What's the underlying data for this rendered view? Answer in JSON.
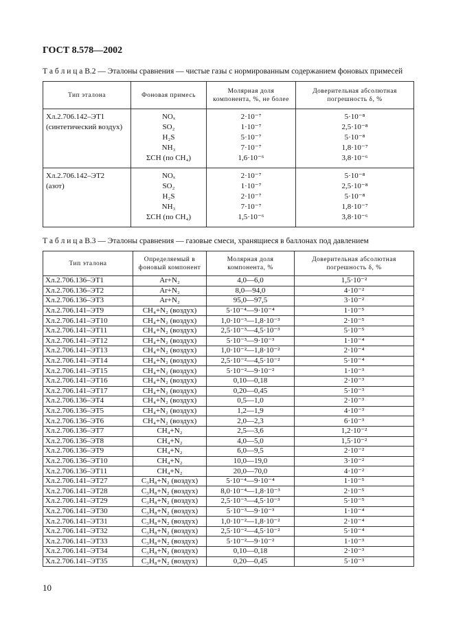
{
  "header": "ГОСТ 8.578—2002",
  "table_b2": {
    "caption": "Т а б л и ц а  В.2 — Эталоны сравнения — чистые газы с нормированным содержанием фоновых примесей",
    "columns": [
      "Тип эталона",
      "Фоновая примесь",
      "Молярная доля компонента, %, не более",
      "Доверительная абсолютная погрешность δ, %"
    ],
    "groups": [
      {
        "name": [
          "Хл.2.706.142–ЭТ1",
          "(синтетический воздух)"
        ],
        "impurities": [
          "NOₓ",
          "SO₂",
          "H₂S",
          "NH₃",
          "ΣCH (по CH₄)"
        ],
        "fractions": [
          "2·10⁻⁷",
          "1·10⁻⁷",
          "5·10⁻⁷",
          "7·10⁻⁷",
          "1,6·10⁻⁶"
        ],
        "errors": [
          "5·10⁻⁸",
          "2,5·10⁻⁸",
          "5·10⁻⁸",
          "1,8·10⁻⁷",
          "3,8·10⁻⁶"
        ]
      },
      {
        "name": [
          "Хл.2.706.142–ЭТ2",
          "(азот)"
        ],
        "impurities": [
          "NOₓ",
          "SO₂",
          "H₂S",
          "NH₃",
          "ΣCH (по CH₄)"
        ],
        "fractions": [
          "2·10⁻⁷",
          "1·10⁻⁷",
          "2·10⁻⁷",
          "7·10⁻⁷",
          "1,5·10⁻⁶"
        ],
        "errors": [
          "5·10⁻⁸",
          "2,5·10⁻⁸",
          "5·10⁻⁸",
          "1,8·10⁻⁷",
          "3,8·10⁻⁶"
        ]
      }
    ]
  },
  "table_b3": {
    "caption": "Т а б л и ц а  В.3 — Эталоны сравнения — газовые смеси, хранящиеся в баллонах под давлением",
    "columns": [
      "Тип эталона",
      "Определяемый в фоновый компонент",
      "Молярная доля компонента, %",
      "Доверительная абсолютная погрешность δ, %"
    ],
    "rows": [
      [
        "Хл.2.706.136–ЭТ1",
        "Ar+N₂",
        "4,0—6,0",
        "1,5·10⁻²"
      ],
      [
        "Хл.2.706.136–ЭТ2",
        "Ar+N₂",
        "8,0—94,0",
        "4·10⁻²"
      ],
      [
        "Хл.2.706.136–ЭТ3",
        "Ar+N₂",
        "95,0—97,5",
        "3·10⁻²"
      ],
      [
        "Хл.2.706.141–ЭТ9",
        "CH₄+N₂ (воздух)",
        "5·10⁻⁴—9·10⁻⁴",
        "1·10⁻⁵"
      ],
      [
        "Хл.2.706.141–ЭТ10",
        "CH₄+N₂ (воздух)",
        "1,0·10⁻³—1,8·10⁻³",
        "2·10⁻⁵"
      ],
      [
        "Хл.2.706.141–ЭТ11",
        "CH₄+N₂ (воздух)",
        "2,5·10⁻³—4,5·10⁻³",
        "5·10⁻⁵"
      ],
      [
        "Хл.2.706.141–ЭТ12",
        "CH₄+N₂ (воздух)",
        "5·10⁻³—9·10⁻³",
        "1·10⁻⁴"
      ],
      [
        "Хл.2.706.141–ЭТ13",
        "CH₄+N₂ (воздух)",
        "1,0·10⁻²—1,8·10⁻²",
        "2·10⁻⁴"
      ],
      [
        "Хл.2.706.141–ЭТ14",
        "CH₄+N₂ (воздух)",
        "2,5·10⁻²—4,5·10⁻²",
        "5·10⁻⁴"
      ],
      [
        "Хл.2.706.141–ЭТ15",
        "CH₄+N₂ (воздух)",
        "5·10⁻²—9·10⁻²",
        "1·10⁻³"
      ],
      [
        "Хл.2.706.141–ЭТ16",
        "CH₄+N₂ (воздух)",
        "0,10—0,18",
        "2·10⁻³"
      ],
      [
        "Хл.2.706.141–ЭТ17",
        "CH₄+N₂ (воздух)",
        "0,20—0,45",
        "5·10⁻³"
      ],
      [
        "Хл.2.706.136–ЭТ4",
        "CH₄+N₂ (воздух)",
        "0,5—1,0",
        "2·10⁻³"
      ],
      [
        "Хл.2.706.136–ЭТ5",
        "CH₄+N₂ (воздух)",
        "1,2—1,9",
        "4·10⁻³"
      ],
      [
        "Хл.2.706.136–ЭТ6",
        "CH₄+N₂ (воздух)",
        "2,0—2,3",
        "6·10⁻³"
      ],
      [
        "Хл.2.706.136–ЭТ7",
        "CH₄+N₂",
        "2,5—3,6",
        "1,2·10⁻²"
      ],
      [
        "Хл.2.706.136–ЭТ8",
        "CH₄+N₂",
        "4,0—5,0",
        "1,5·10⁻²"
      ],
      [
        "Хл.2.706.136–ЭТ9",
        "CH₄+N₂",
        "6,0—9,5",
        "2·10⁻²"
      ],
      [
        "Хл.2.706.136–ЭТ10",
        "CH₄+N₂",
        "10,0—19,0",
        "3·10⁻²"
      ],
      [
        "Хл.2.706.136–ЭТ11",
        "CH₄+N₂",
        "20,0—70,0",
        "4·10⁻²"
      ],
      [
        "Хл.2.706.141–ЭТ27",
        "C₃H₈+N₂ (воздух)",
        "5·10⁻⁴—9·10⁻⁴",
        "1·10⁻⁵"
      ],
      [
        "Хл.2.706.141–ЭТ28",
        "C₃H₈+N₂ (воздух)",
        "8,0·10⁻⁴—1,8·10⁻³",
        "2·10⁻⁵"
      ],
      [
        "Хл.2.706.141–ЭТ29",
        "C₃H₈+N₂ (воздух)",
        "2,5·10⁻³—4,5·10⁻³",
        "5·10⁻⁵"
      ],
      [
        "Хл.2.706.141–ЭТ30",
        "C₃H₈+N₂ (воздух)",
        "5·10⁻³—9·10⁻³",
        "1·10⁻⁴"
      ],
      [
        "Хл.2.706.141–ЭТ31",
        "C₃H₈+N₂ (воздух)",
        "1,0·10⁻²—1,8·10⁻²",
        "2·10⁻⁴"
      ],
      [
        "Хл.2.706.141–ЭТ32",
        "C₃H₈+N₂ (воздух)",
        "2,5·10⁻²—4,5·10⁻²",
        "5·10⁻⁴"
      ],
      [
        "Хл.2.706.141–ЭТ33",
        "C₃H₈+N₂ (воздух)",
        "5·10⁻²—9·10⁻²",
        "1·10⁻³"
      ],
      [
        "Хл.2.706.141–ЭТ34",
        "C₃H₈+N₂ (воздух)",
        "0,10—0,18",
        "2·10⁻³"
      ],
      [
        "Хл.2.706.141–ЭТ35",
        "C₃H₈+N₂ (воздух)",
        "0,20—0,45",
        "5·10⁻³"
      ]
    ]
  },
  "page_number": "10"
}
